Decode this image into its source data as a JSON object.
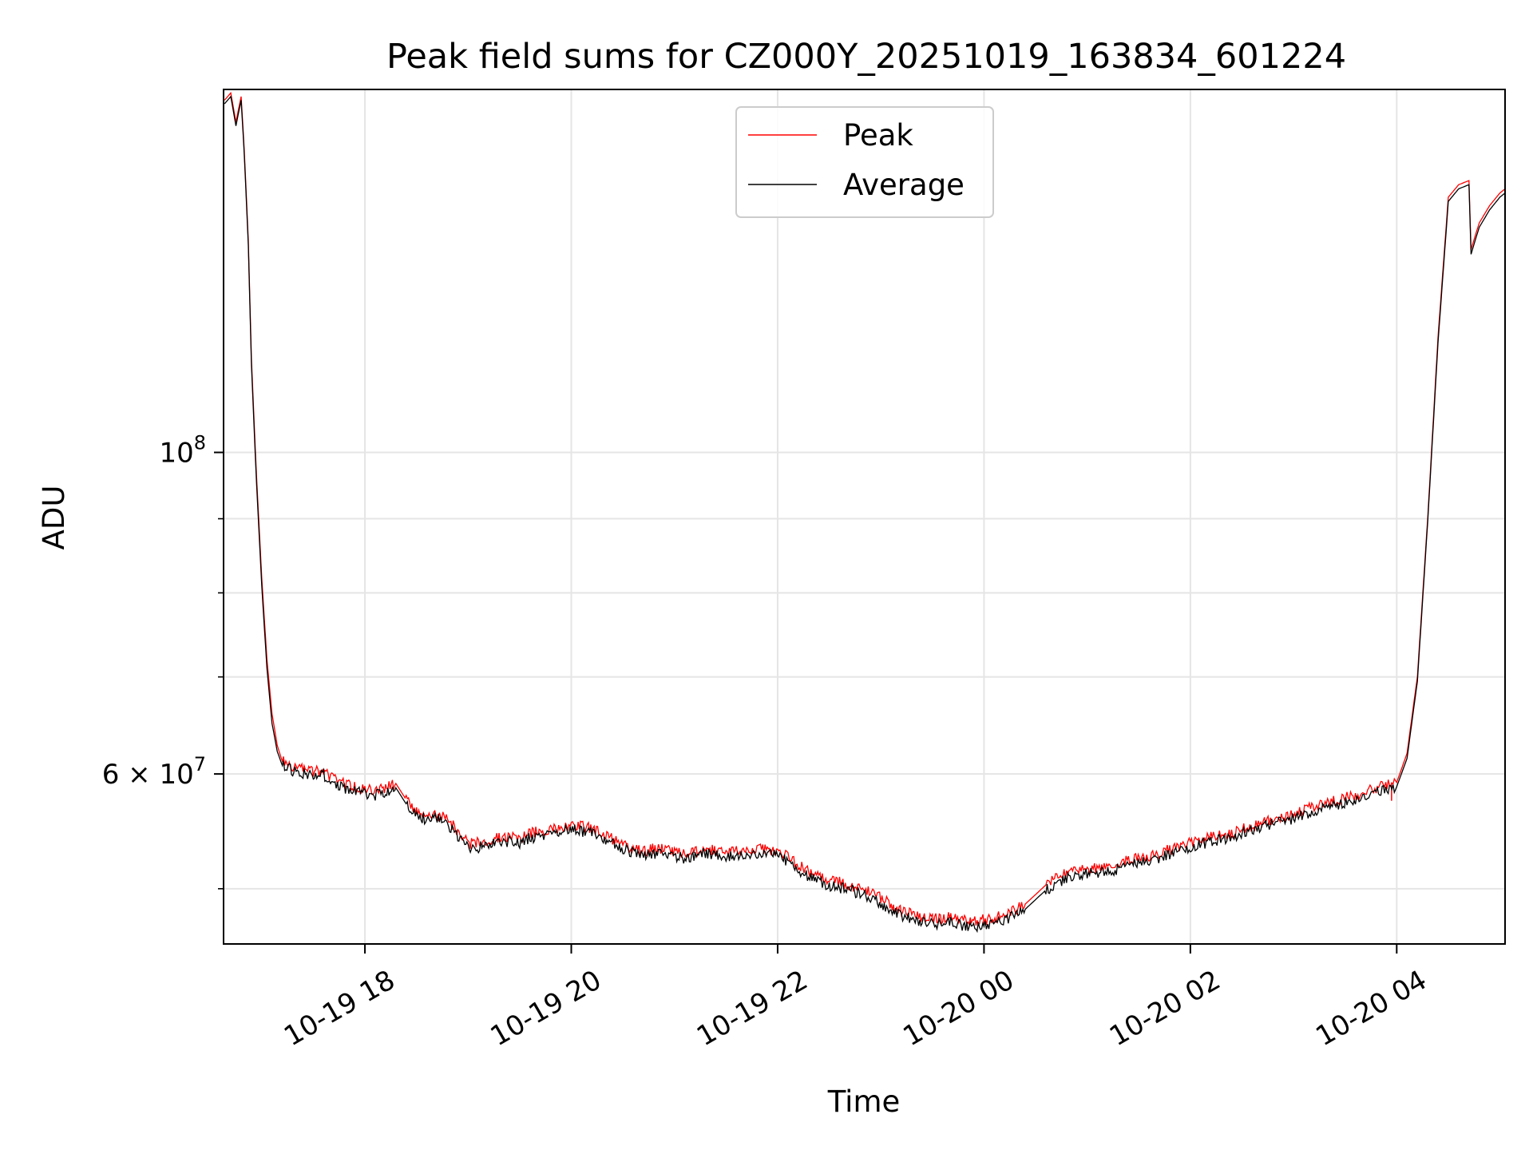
{
  "chart_data": {
    "type": "line",
    "title": "Peak field sums for CZ000Y_20251019_163834_601224",
    "xlabel": "Time",
    "ylabel": "ADU",
    "yscale": "log",
    "grid": true,
    "legend_position": "upper-center",
    "x_unit": "hours since 2025-10-19 00:00",
    "xlim": [
      16.63,
      29.05
    ],
    "ylim": [
      45800000,
      178000000
    ],
    "x_ticks": [
      {
        "value": 18,
        "label": "10-19 18"
      },
      {
        "value": 20,
        "label": "10-19 20"
      },
      {
        "value": 22,
        "label": "10-19 22"
      },
      {
        "value": 24,
        "label": "10-20 00"
      },
      {
        "value": 26,
        "label": "10-20 02"
      },
      {
        "value": 28,
        "label": "10-20 04"
      }
    ],
    "y_major_ticks": [
      {
        "value": 100000000,
        "base": "10",
        "exp": "8",
        "mantissa": ""
      },
      {
        "value": 60000000,
        "base": "10",
        "exp": "7",
        "mantissa": "6"
      }
    ],
    "y_minor_ticks": [
      50000000,
      70000000,
      80000000,
      90000000
    ],
    "series": [
      {
        "name": "Peak",
        "color": "#ff0000",
        "x": [
          16.64,
          16.7,
          16.75,
          16.8,
          16.83,
          16.87,
          16.9,
          16.95,
          17.0,
          17.05,
          17.1,
          17.15,
          17.2,
          17.3,
          17.4,
          17.5,
          17.6,
          17.7,
          17.8,
          17.9,
          18.0,
          18.1,
          18.2,
          18.3,
          18.4,
          18.5,
          18.6,
          18.7,
          18.8,
          18.9,
          19.0,
          19.1,
          19.2,
          19.3,
          19.4,
          19.5,
          19.6,
          19.7,
          19.8,
          19.9,
          20.0,
          20.1,
          20.2,
          20.3,
          20.4,
          20.5,
          20.6,
          20.7,
          20.8,
          20.9,
          21.0,
          21.1,
          21.2,
          21.3,
          21.4,
          21.5,
          21.6,
          21.7,
          21.8,
          21.9,
          22.0,
          22.1,
          22.2,
          22.3,
          22.4,
          22.5,
          22.6,
          22.7,
          22.8,
          22.9,
          23.0,
          23.1,
          23.2,
          23.3,
          23.4,
          23.5,
          23.6,
          23.7,
          23.8,
          23.9,
          24.0,
          24.2,
          24.4,
          24.6,
          24.8,
          25.0,
          25.2,
          25.4,
          25.6,
          25.8,
          26.0,
          26.2,
          26.4,
          26.6,
          26.8,
          27.0,
          27.2,
          27.4,
          27.6,
          27.8,
          28.0,
          28.1,
          28.2,
          28.3,
          28.4,
          28.5,
          28.6,
          28.7,
          28.72,
          28.76,
          28.8,
          28.9,
          29.0,
          29.05
        ],
        "y": [
          175000000,
          177000000,
          169000000,
          176000000,
          162000000,
          140000000,
          116000000,
          96000000,
          82000000,
          72000000,
          66000000,
          62800000,
          61200000,
          60700000,
          60500000,
          60200000,
          60300000,
          59500000,
          59100000,
          58800000,
          58600000,
          58400000,
          58700000,
          59100000,
          57600000,
          56600000,
          56200000,
          56300000,
          55800000,
          54800000,
          53700000,
          53800000,
          54000000,
          54300000,
          54300000,
          54200000,
          54600000,
          54800000,
          55000000,
          55200000,
          55400000,
          55200000,
          55000000,
          54600000,
          54100000,
          53700000,
          53300000,
          53000000,
          53300000,
          53200000,
          53000000,
          52900000,
          53100000,
          53300000,
          53100000,
          53000000,
          53100000,
          53200000,
          53300000,
          53200000,
          53100000,
          52600000,
          51900000,
          51400000,
          51000000,
          50600000,
          50500000,
          50300000,
          50000000,
          49700000,
          49300000,
          48700000,
          48300000,
          48000000,
          47800000,
          47700000,
          47700000,
          47800000,
          47500000,
          47500000,
          47600000,
          47900000,
          48800000,
          50300000,
          51300000,
          51600000,
          51700000,
          52300000,
          52600000,
          53200000,
          53800000,
          54300000,
          54600000,
          55300000,
          55800000,
          56300000,
          57000000,
          57500000,
          58000000,
          58700000,
          59200000,
          62000000,
          70000000,
          90000000,
          120000000,
          150000000,
          153000000,
          154000000,
          138000000,
          141000000,
          144000000,
          148000000,
          151000000,
          152000000
        ],
        "spikes": [
          {
            "x": 27.0,
            "y": 56000000
          },
          {
            "x": 27.95,
            "y": 57500000
          }
        ]
      },
      {
        "name": "Average",
        "color": "#000000",
        "x": [
          16.64,
          16.7,
          16.75,
          16.8,
          16.83,
          16.87,
          16.9,
          16.95,
          17.0,
          17.05,
          17.1,
          17.15,
          17.2,
          17.3,
          17.4,
          17.5,
          17.6,
          17.7,
          17.8,
          17.9,
          18.0,
          18.1,
          18.2,
          18.3,
          18.4,
          18.5,
          18.6,
          18.7,
          18.8,
          18.9,
          19.0,
          19.1,
          19.2,
          19.3,
          19.4,
          19.5,
          19.6,
          19.7,
          19.8,
          19.9,
          20.0,
          20.1,
          20.2,
          20.3,
          20.4,
          20.5,
          20.6,
          20.7,
          20.8,
          20.9,
          21.0,
          21.1,
          21.2,
          21.3,
          21.4,
          21.5,
          21.6,
          21.7,
          21.8,
          21.9,
          22.0,
          22.1,
          22.2,
          22.3,
          22.4,
          22.5,
          22.6,
          22.7,
          22.8,
          22.9,
          23.0,
          23.1,
          23.2,
          23.3,
          23.4,
          23.5,
          23.6,
          23.7,
          23.8,
          23.9,
          24.0,
          24.2,
          24.4,
          24.6,
          24.8,
          25.0,
          25.2,
          25.4,
          25.6,
          25.8,
          26.0,
          26.2,
          26.4,
          26.6,
          26.8,
          27.0,
          27.2,
          27.4,
          27.6,
          27.8,
          28.0,
          28.1,
          28.2,
          28.3,
          28.4,
          28.5,
          28.6,
          28.7,
          28.72,
          28.76,
          28.8,
          28.9,
          29.0,
          29.05
        ],
        "y": [
          174000000,
          176000000,
          168000000,
          175000000,
          161000000,
          139000000,
          115000000,
          95000000,
          81000000,
          71000000,
          65000000,
          62200000,
          60800000,
          60300000,
          60100000,
          59800000,
          59900000,
          59100000,
          58700000,
          58400000,
          58200000,
          58000000,
          58300000,
          58700000,
          57200000,
          56200000,
          55800000,
          55900000,
          55400000,
          54400000,
          53300000,
          53400000,
          53600000,
          53900000,
          53900000,
          53800000,
          54200000,
          54400000,
          54600000,
          54800000,
          55000000,
          54800000,
          54600000,
          54200000,
          53700000,
          53300000,
          52900000,
          52600000,
          52900000,
          52800000,
          52600000,
          52500000,
          52700000,
          52900000,
          52700000,
          52600000,
          52700000,
          52800000,
          52900000,
          52800000,
          52700000,
          52200000,
          51500000,
          51000000,
          50600000,
          50200000,
          50100000,
          49900000,
          49600000,
          49300000,
          48900000,
          48300000,
          47900000,
          47600000,
          47400000,
          47300000,
          47300000,
          47400000,
          47100000,
          47100000,
          47200000,
          47500000,
          48400000,
          49900000,
          50900000,
          51200000,
          51300000,
          51900000,
          52200000,
          52800000,
          53400000,
          53900000,
          54200000,
          54900000,
          55400000,
          55900000,
          56600000,
          57100000,
          57600000,
          58300000,
          58800000,
          61500000,
          69500000,
          89500000,
          119000000,
          149000000,
          152000000,
          153000000,
          137000000,
          140000000,
          143000000,
          147000000,
          150000000,
          151000000
        ]
      }
    ]
  }
}
